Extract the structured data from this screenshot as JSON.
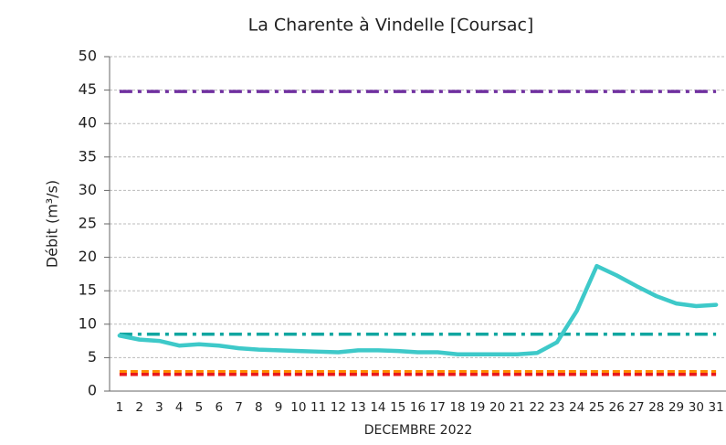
{
  "chart_data": {
    "type": "line",
    "title": "La Charente à Vindelle [Coursac]",
    "ylabel": "Débit (m³/s)",
    "xlabel": "DECEMBRE 2022",
    "categories": [
      "1",
      "2",
      "3",
      "4",
      "5",
      "6",
      "7",
      "8",
      "9",
      "10",
      "11",
      "12",
      "13",
      "14",
      "15",
      "16",
      "17",
      "18",
      "19",
      "20",
      "21",
      "22",
      "23",
      "24",
      "25",
      "26",
      "27",
      "28",
      "29",
      "30",
      "31"
    ],
    "series": [
      {
        "color": "#3ec9c9",
        "values": [
          8.3,
          7.7,
          7.5,
          6.8,
          7.0,
          6.8,
          6.4,
          6.2,
          6.1,
          6.0,
          5.9,
          5.8,
          6.1,
          6.1,
          6.0,
          5.8,
          5.8,
          5.5,
          5.5,
          5.5,
          5.5,
          5.7,
          7.3,
          12,
          18.7,
          17.3,
          15.7,
          14.2,
          13.1,
          12.7,
          12.9
        ]
      }
    ],
    "reference_lines": [
      {
        "value": 44.8,
        "color": "#7030a0",
        "style": "dashdot"
      },
      {
        "value": 8.5,
        "color": "#11a6a0",
        "style": "dashdot"
      },
      {
        "value": 2.9,
        "color": "#ff8c00",
        "style": "dash"
      },
      {
        "value": 2.5,
        "color": "#e8191c",
        "style": "dash"
      }
    ],
    "ylim": [
      0,
      50
    ],
    "yticks": [
      0,
      5,
      10,
      15,
      20,
      25,
      30,
      35,
      40,
      45,
      50
    ],
    "grid": true
  }
}
